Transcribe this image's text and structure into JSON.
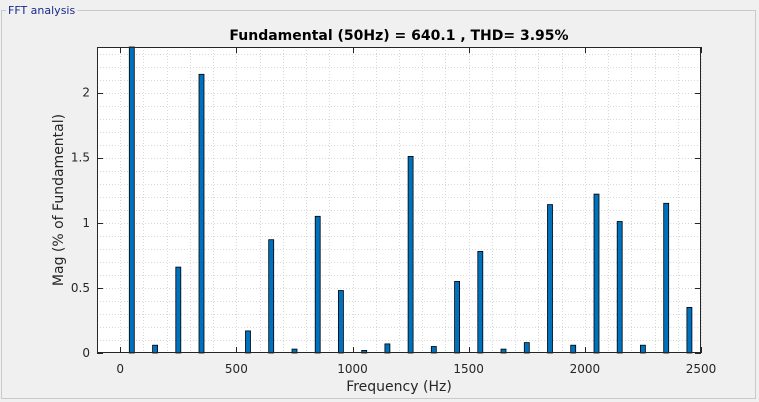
{
  "panel": {
    "title": "FFT analysis"
  },
  "colors": {
    "bar_fill": "#0072bd",
    "bar_stroke": "#000000",
    "grid": "#d8d8d8",
    "axes": "#262626",
    "background": "#ffffff"
  },
  "chart_data": {
    "type": "bar",
    "title": "Fundamental (50Hz) = 640.1 , THD= 3.95%",
    "xlabel": "Frequency (Hz)",
    "ylabel": "Mag (% of Fundamental)",
    "xlim": [
      -100,
      2500
    ],
    "ylim": [
      0,
      2.35
    ],
    "xticks": [
      0,
      500,
      1000,
      1500,
      2000,
      2500
    ],
    "yticks": [
      0,
      0.5,
      1,
      1.5,
      2
    ],
    "xtick_labels": [
      "0",
      "500",
      "1000",
      "1500",
      "2000",
      "2500"
    ],
    "ytick_labels": [
      "0",
      "0.5",
      "1",
      "1.5",
      "2"
    ],
    "grid": "minor dotted",
    "x": [
      50,
      150,
      250,
      350,
      450,
      550,
      650,
      750,
      850,
      950,
      1050,
      1150,
      1250,
      1350,
      1450,
      1550,
      1650,
      1750,
      1850,
      1950,
      2050,
      2150,
      2250,
      2350,
      2450
    ],
    "values": [
      2.35,
      0.06,
      0.66,
      2.14,
      0.0,
      0.17,
      0.87,
      0.03,
      1.05,
      0.48,
      0.02,
      0.07,
      1.51,
      0.05,
      0.55,
      0.78,
      0.03,
      0.08,
      1.14,
      0.06,
      1.22,
      1.01,
      0.06,
      1.15,
      0.35
    ]
  }
}
